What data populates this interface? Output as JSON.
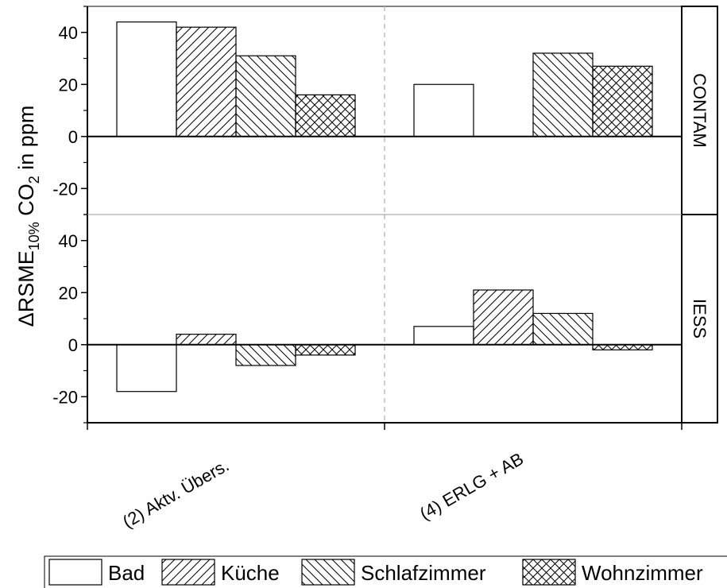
{
  "chart_data": {
    "type": "bar",
    "ylabel_parts": {
      "delta": "Δ",
      "main": "RSME",
      "sub1": "10%",
      "mid": " CO",
      "sub2": "2",
      "tail": " in ppm"
    },
    "categories": [
      "(2) Aktv. Übers.",
      "(4) ERLG + AB"
    ],
    "series_names": [
      "Bad",
      "Küche",
      "Schlafzimmer",
      "Wohnzimmer"
    ],
    "patterns": [
      "none",
      "diag-up",
      "diag-down",
      "crosshatch"
    ],
    "ylim": [
      -30,
      50
    ],
    "yticks": [
      -20,
      0,
      20,
      40
    ],
    "legend_position": "bottom",
    "grid": false,
    "panels": [
      {
        "label": "CONTAM",
        "series": [
          {
            "name": "Bad",
            "values": [
              44,
              20
            ]
          },
          {
            "name": "Küche",
            "values": [
              42,
              null
            ]
          },
          {
            "name": "Schlafzimmer",
            "values": [
              31,
              32
            ]
          },
          {
            "name": "Wohnzimmer",
            "values": [
              16,
              27
            ]
          }
        ]
      },
      {
        "label": "IESS",
        "series": [
          {
            "name": "Bad",
            "values": [
              -18,
              7
            ]
          },
          {
            "name": "Küche",
            "values": [
              4,
              21
            ]
          },
          {
            "name": "Schlafzimmer",
            "values": [
              -8,
              12
            ]
          },
          {
            "name": "Wohnzimmer",
            "values": [
              -4,
              -2
            ]
          }
        ]
      }
    ]
  }
}
